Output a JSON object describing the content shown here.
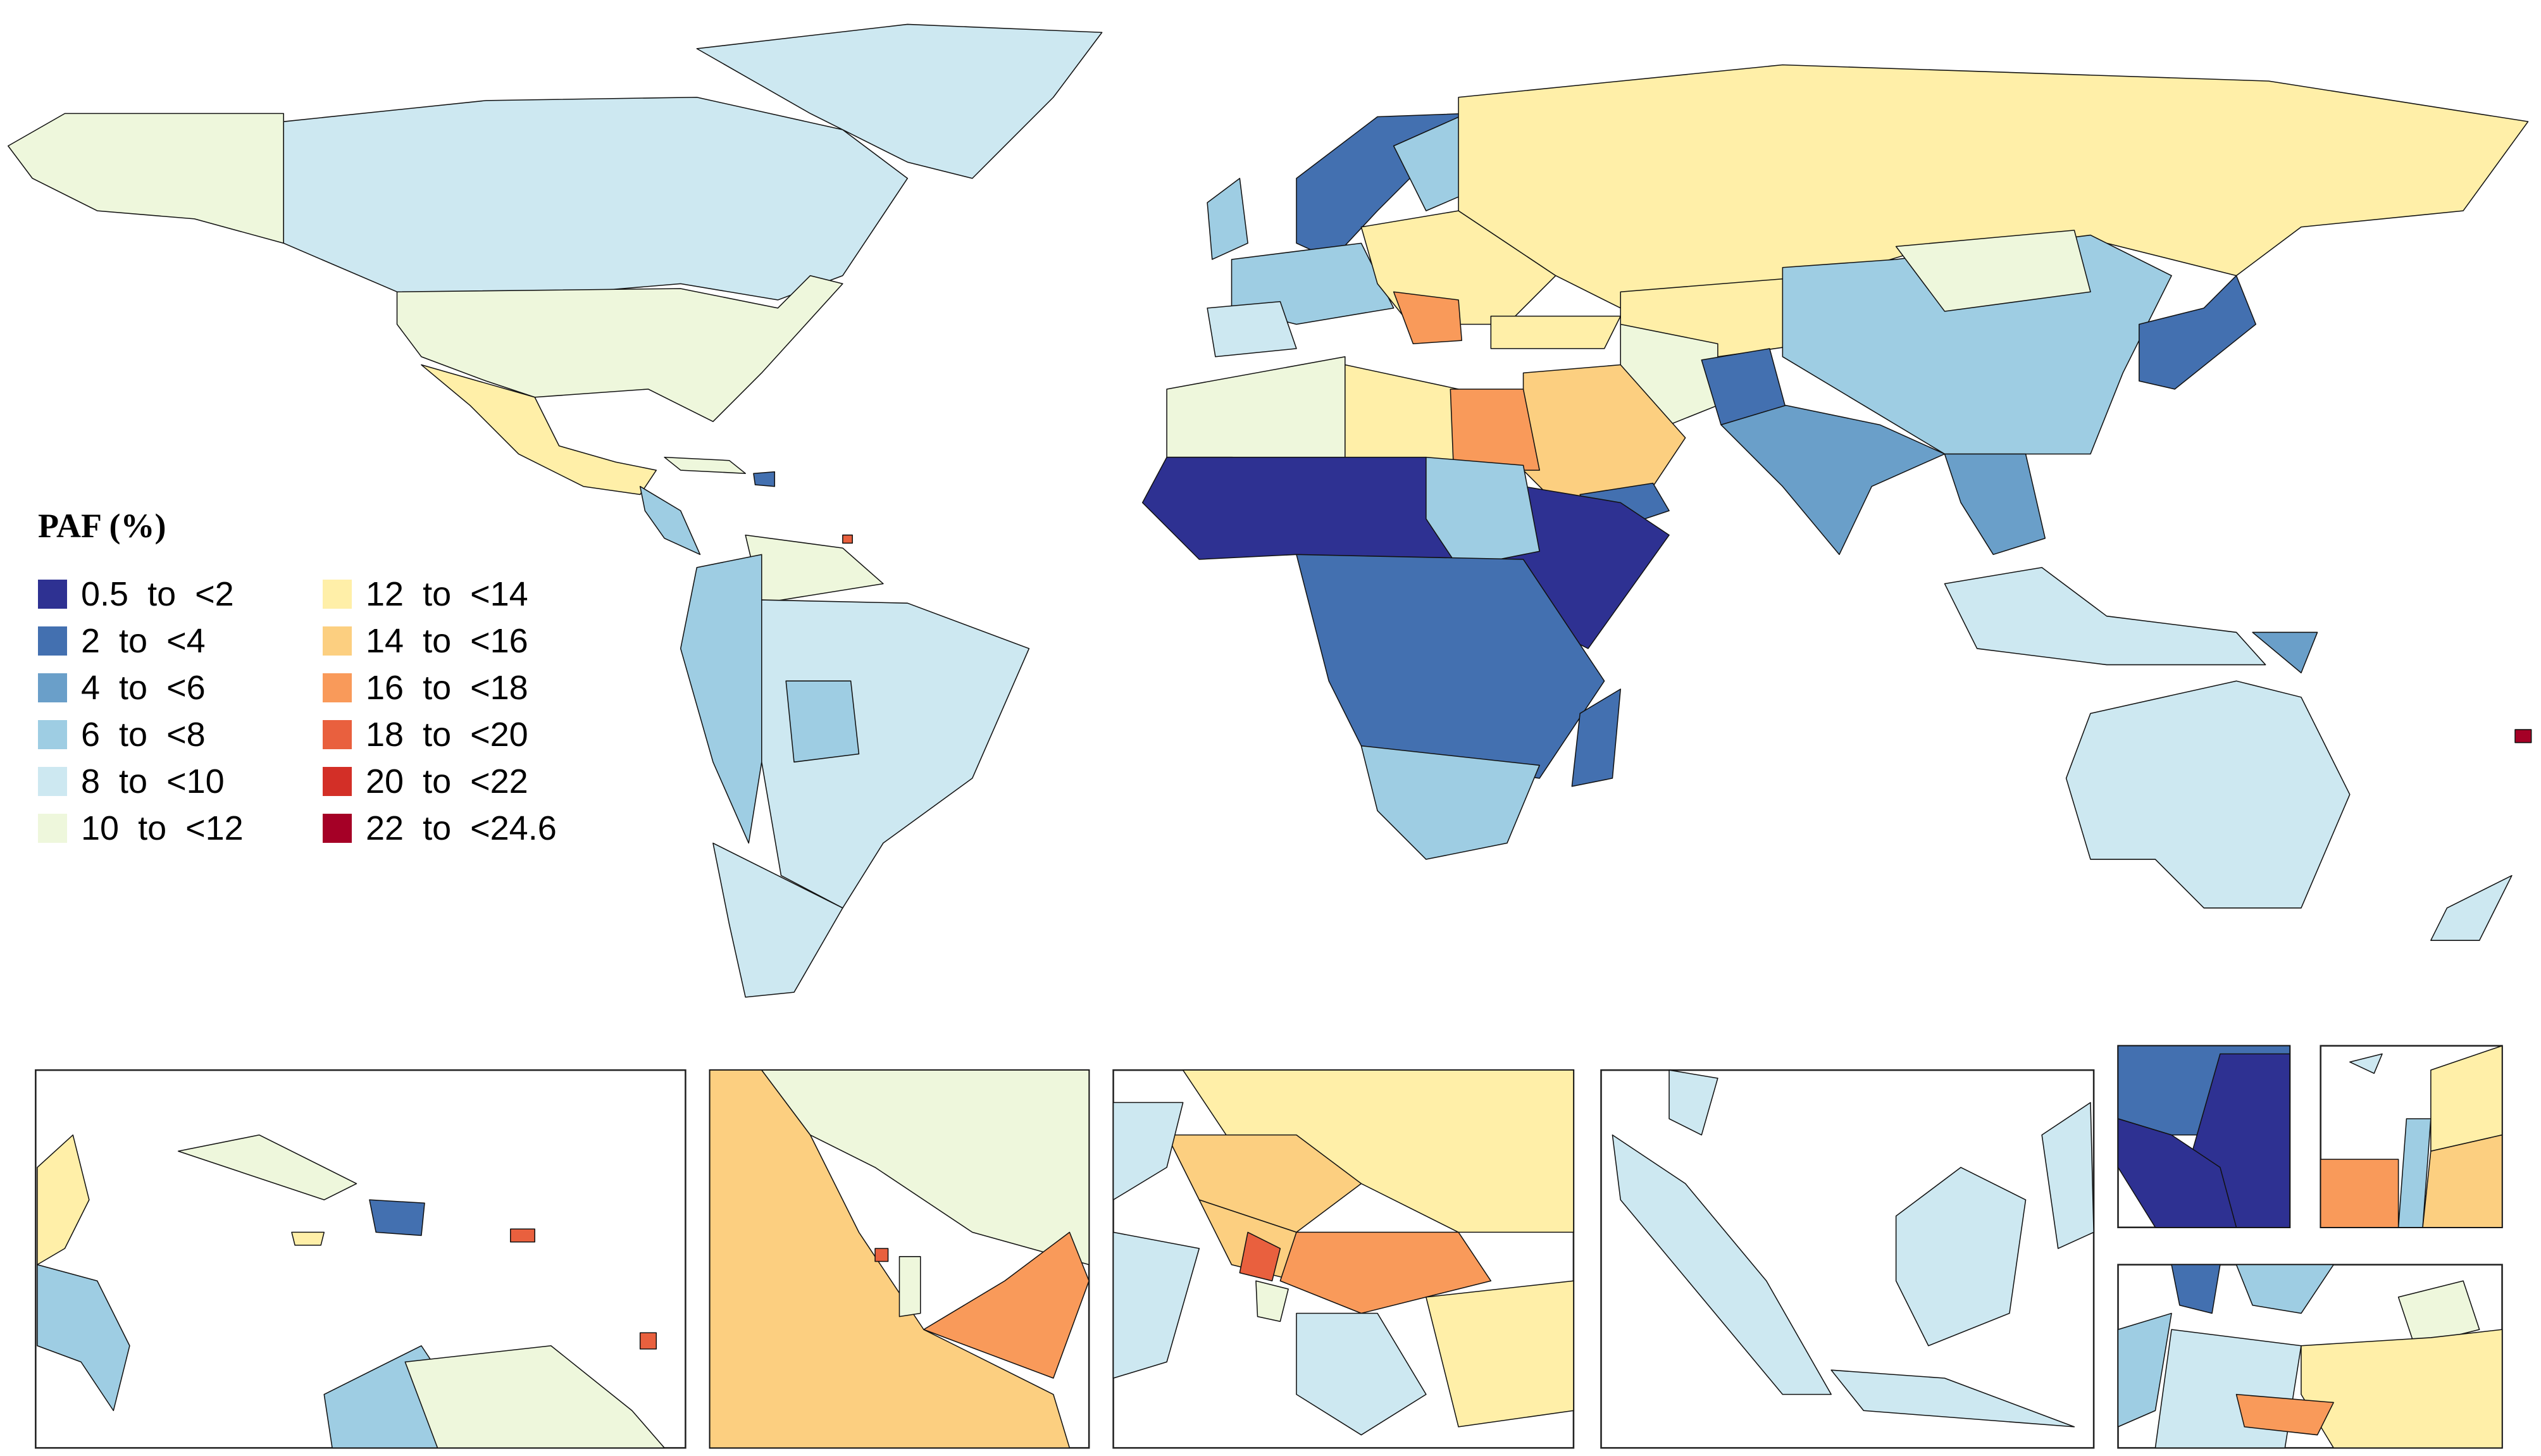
{
  "legend": {
    "title": "PAF (%)",
    "items": [
      {
        "label": "0.5  to  <2",
        "color": "#2e3192"
      },
      {
        "label": "2  to  <4",
        "color": "#4370b0"
      },
      {
        "label": "4  to  <6",
        "color": "#6a9fc9"
      },
      {
        "label": "6  to  <8",
        "color": "#9ecde3"
      },
      {
        "label": "8  to  <10",
        "color": "#cde8f1"
      },
      {
        "label": "10  to  <12",
        "color": "#eef7dc"
      },
      {
        "label": "12  to  <14",
        "color": "#ffefa8"
      },
      {
        "label": "14  to  <16",
        "color": "#fccf80"
      },
      {
        "label": "16  to  <18",
        "color": "#f99a5a"
      },
      {
        "label": "18  to  <20",
        "color": "#e9603e"
      },
      {
        "label": "20  to  <22",
        "color": "#d32f27"
      },
      {
        "label": "22  to  <24.6",
        "color": "#a50026"
      }
    ]
  }
}
